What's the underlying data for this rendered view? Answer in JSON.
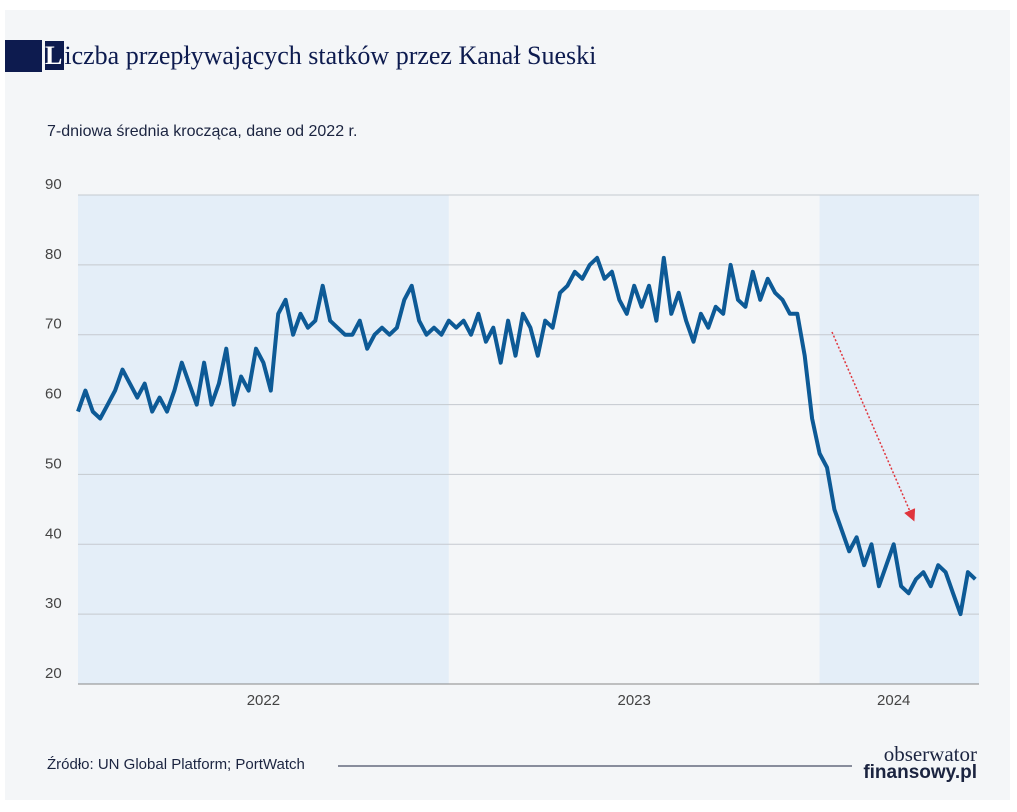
{
  "chart_data": {
    "type": "line",
    "title": "Liczba przepływających statków przez Kanał Sueski",
    "subtitle": "7-dniowa średnia krocząca, dane od 2022 r.",
    "source": "Źródło: UN Global Platform; PortWatch",
    "logo": [
      "obserwator",
      "finansowy.pl"
    ],
    "xlim": [
      2022,
      2024.43
    ],
    "xticks": [
      {
        "value": 2022.5,
        "label": "2022"
      },
      {
        "value": 2023.5,
        "label": "2023"
      },
      {
        "value": 2024.2,
        "label": "2024"
      }
    ],
    "ylim": [
      20,
      90
    ],
    "yticks": [
      20,
      30,
      40,
      50,
      60,
      70,
      80,
      90
    ],
    "grid": true,
    "series": [
      {
        "color": "#0d5a96",
        "x": [
          2022.0,
          2022.02,
          2022.04,
          2022.06,
          2022.08,
          2022.1,
          2022.12,
          2022.14,
          2022.16,
          2022.18,
          2022.2,
          2022.22,
          2022.24,
          2022.26,
          2022.28,
          2022.3,
          2022.32,
          2022.34,
          2022.36,
          2022.38,
          2022.4,
          2022.42,
          2022.44,
          2022.46,
          2022.48,
          2022.5,
          2022.52,
          2022.54,
          2022.56,
          2022.58,
          2022.6,
          2022.62,
          2022.64,
          2022.66,
          2022.68,
          2022.7,
          2022.72,
          2022.74,
          2022.76,
          2022.78,
          2022.8,
          2022.82,
          2022.84,
          2022.86,
          2022.88,
          2022.9,
          2022.92,
          2022.94,
          2022.96,
          2022.98,
          2023.0,
          2023.02,
          2023.04,
          2023.06,
          2023.08,
          2023.1,
          2023.12,
          2023.14,
          2023.16,
          2023.18,
          2023.2,
          2023.22,
          2023.24,
          2023.26,
          2023.28,
          2023.3,
          2023.32,
          2023.34,
          2023.36,
          2023.38,
          2023.4,
          2023.42,
          2023.44,
          2023.46,
          2023.48,
          2023.5,
          2023.52,
          2023.54,
          2023.56,
          2023.58,
          2023.6,
          2023.62,
          2023.64,
          2023.66,
          2023.68,
          2023.7,
          2023.72,
          2023.74,
          2023.76,
          2023.78,
          2023.8,
          2023.82,
          2023.84,
          2023.86,
          2023.88,
          2023.9,
          2023.92,
          2023.94,
          2023.96,
          2023.98,
          2024.0,
          2024.02,
          2024.04,
          2024.06,
          2024.08,
          2024.1,
          2024.12,
          2024.14,
          2024.16,
          2024.18,
          2024.2,
          2024.22,
          2024.24,
          2024.26,
          2024.28,
          2024.3,
          2024.32,
          2024.34,
          2024.36,
          2024.38,
          2024.4,
          2024.42
        ],
        "values": [
          59,
          62,
          59,
          58,
          60,
          62,
          65,
          63,
          61,
          63,
          59,
          61,
          59,
          62,
          66,
          63,
          60,
          66,
          60,
          63,
          68,
          60,
          64,
          62,
          68,
          66,
          62,
          73,
          75,
          70,
          73,
          71,
          72,
          77,
          72,
          71,
          70,
          70,
          72,
          68,
          70,
          71,
          70,
          71,
          75,
          77,
          72,
          70,
          71,
          70,
          72,
          71,
          72,
          70,
          73,
          69,
          71,
          66,
          72,
          67,
          73,
          71,
          67,
          72,
          71,
          76,
          77,
          79,
          78,
          80,
          81,
          78,
          79,
          75,
          73,
          77,
          74,
          77,
          72,
          81,
          73,
          76,
          72,
          69,
          73,
          71,
          74,
          73,
          80,
          75,
          74,
          79,
          75,
          78,
          76,
          75,
          73,
          73,
          67,
          58,
          53,
          51,
          45,
          42,
          39,
          41,
          37,
          40,
          34,
          37,
          40,
          34,
          33,
          35,
          36,
          34,
          37,
          36,
          33,
          30,
          36,
          35
        ]
      }
    ]
  }
}
